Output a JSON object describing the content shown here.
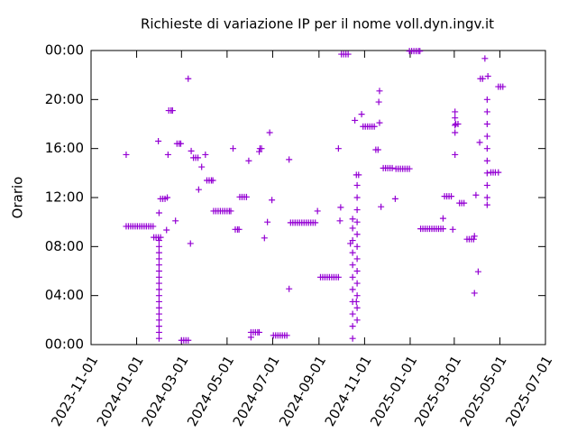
{
  "chart_data": {
    "type": "scatter",
    "title": "Richieste di variazione IP per il nome voll.dyn.ingv.it",
    "y_label": "Orario",
    "color": "#9400d3",
    "xlim": [
      "2023-11-01",
      "2025-07-01"
    ],
    "xticks": [
      "2023-11-01",
      "2024-01-01",
      "2024-03-01",
      "2024-05-01",
      "2024-07-01",
      "2024-09-01",
      "2024-11-01",
      "2025-01-01",
      "2025-03-01",
      "2025-05-01",
      "2025-07-01"
    ],
    "ylim": [
      0,
      24
    ],
    "yticks": [
      {
        "value": 0,
        "label": "00:00"
      },
      {
        "value": 4,
        "label": "04:00"
      },
      {
        "value": 8,
        "label": "08:00"
      },
      {
        "value": 12,
        "label": "12:00"
      },
      {
        "value": 16,
        "label": "16:00"
      },
      {
        "value": 20,
        "label": "20:00"
      },
      {
        "value": 24,
        "label": "00:00"
      }
    ],
    "x": [
      "2023-12-18",
      "2023-12-18",
      "2023-12-21",
      "2023-12-24",
      "2023-12-27",
      "2023-12-30",
      "2024-01-02",
      "2024-01-05",
      "2024-01-08",
      "2024-01-11",
      "2024-01-14",
      "2024-01-17",
      "2024-01-20",
      "2024-01-23",
      "2024-01-24",
      "2024-01-27",
      "2024-01-30",
      "2024-02-02",
      "2024-01-31",
      "2024-01-31",
      "2024-01-31",
      "2024-01-31",
      "2024-01-31",
      "2024-01-31",
      "2024-01-31",
      "2024-01-31",
      "2024-01-31",
      "2024-01-31",
      "2024-01-31",
      "2024-01-31",
      "2024-01-31",
      "2024-01-31",
      "2024-01-31",
      "2024-01-31",
      "2024-01-31",
      "2024-01-30",
      "2024-01-31",
      "2024-02-02",
      "2024-02-05",
      "2024-02-08",
      "2024-02-11",
      "2024-02-10",
      "2024-02-12",
      "2024-02-13",
      "2024-02-16",
      "2024-02-18",
      "2024-02-22",
      "2024-02-24",
      "2024-02-27",
      "2024-02-29",
      "2024-03-01",
      "2024-03-04",
      "2024-03-07",
      "2024-03-10",
      "2024-03-10",
      "2024-03-13",
      "2024-03-14",
      "2024-03-17",
      "2024-03-20",
      "2024-03-23",
      "2024-03-24",
      "2024-03-28",
      "2024-04-02",
      "2024-04-04",
      "2024-04-07",
      "2024-04-10",
      "2024-04-12",
      "2024-04-13",
      "2024-04-16",
      "2024-04-19",
      "2024-04-22",
      "2024-04-25",
      "2024-04-28",
      "2024-05-01",
      "2024-05-04",
      "2024-05-06",
      "2024-05-09",
      "2024-05-12",
      "2024-05-15",
      "2024-05-17",
      "2024-05-18",
      "2024-05-21",
      "2024-05-24",
      "2024-05-27",
      "2024-05-30",
      "2024-06-02",
      "2024-06-02",
      "2024-06-05",
      "2024-06-08",
      "2024-06-11",
      "2024-06-13",
      "2024-06-13",
      "2024-06-14",
      "2024-06-16",
      "2024-06-20",
      "2024-06-24",
      "2024-06-27",
      "2024-06-30",
      "2024-07-02",
      "2024-07-05",
      "2024-07-08",
      "2024-07-11",
      "2024-07-14",
      "2024-07-17",
      "2024-07-20",
      "2024-07-23",
      "2024-07-23",
      "2024-07-25",
      "2024-07-28",
      "2024-07-31",
      "2024-08-03",
      "2024-08-06",
      "2024-08-09",
      "2024-08-12",
      "2024-08-15",
      "2024-08-18",
      "2024-08-21",
      "2024-08-24",
      "2024-08-27",
      "2024-08-30",
      "2024-09-03",
      "2024-09-06",
      "2024-09-09",
      "2024-09-12",
      "2024-09-15",
      "2024-09-18",
      "2024-09-21",
      "2024-09-24",
      "2024-09-27",
      "2024-09-27",
      "2024-09-29",
      "2024-09-30",
      "2024-10-01",
      "2024-10-04",
      "2024-10-07",
      "2024-10-10",
      "2024-10-13",
      "2024-10-16",
      "2024-10-16",
      "2024-10-16",
      "2024-10-16",
      "2024-10-16",
      "2024-10-16",
      "2024-10-16",
      "2024-10-16",
      "2024-10-16",
      "2024-10-16",
      "2024-10-16",
      "2024-10-19",
      "2024-10-21",
      "2024-10-24",
      "2024-10-22",
      "2024-10-22",
      "2024-10-22",
      "2024-10-22",
      "2024-10-22",
      "2024-10-22",
      "2024-10-22",
      "2024-10-22",
      "2024-10-22",
      "2024-10-22",
      "2024-10-22",
      "2024-10-22",
      "2024-10-21",
      "2024-10-28",
      "2024-10-30",
      "2024-11-02",
      "2024-11-05",
      "2024-11-08",
      "2024-11-11",
      "2024-11-14",
      "2024-11-16",
      "2024-11-19",
      "2024-11-20",
      "2024-11-21",
      "2024-11-21",
      "2024-11-23",
      "2024-11-26",
      "2024-11-29",
      "2024-12-02",
      "2024-12-05",
      "2024-12-08",
      "2024-12-12",
      "2024-12-13",
      "2024-12-16",
      "2024-12-19",
      "2024-12-22",
      "2024-12-25",
      "2024-12-28",
      "2024-12-31",
      "2024-12-31",
      "2025-01-03",
      "2025-01-06",
      "2025-01-09",
      "2025-01-12",
      "2025-01-14",
      "2025-01-15",
      "2025-01-18",
      "2025-01-21",
      "2025-01-24",
      "2025-01-27",
      "2025-01-30",
      "2025-02-02",
      "2025-02-05",
      "2025-02-08",
      "2025-02-11",
      "2025-02-14",
      "2025-02-14",
      "2025-02-16",
      "2025-02-19",
      "2025-02-22",
      "2025-02-25",
      "2025-02-27",
      "2025-03-02",
      "2025-03-02",
      "2025-03-02",
      "2025-03-02",
      "2025-03-02",
      "2025-03-03",
      "2025-03-06",
      "2025-03-08",
      "2025-03-11",
      "2025-03-14",
      "2025-03-18",
      "2025-03-21",
      "2025-03-24",
      "2025-03-27",
      "2025-03-28",
      "2025-03-28",
      "2025-03-30",
      "2025-04-02",
      "2025-04-04",
      "2025-04-05",
      "2025-04-08",
      "2025-04-11",
      "2025-04-15",
      "2025-04-14",
      "2025-04-14",
      "2025-04-14",
      "2025-04-14",
      "2025-04-14",
      "2025-04-14",
      "2025-04-14",
      "2025-04-14",
      "2025-04-14",
      "2025-04-14",
      "2025-04-19",
      "2025-04-22",
      "2025-04-25",
      "2025-04-29",
      "2025-04-29",
      "2025-05-02",
      "2025-05-05"
    ],
    "values": [
      15.5,
      9.65,
      9.65,
      9.65,
      9.65,
      9.65,
      9.65,
      9.65,
      9.65,
      9.65,
      9.65,
      9.65,
      9.65,
      9.65,
      8.75,
      8.75,
      8.75,
      8.75,
      0.5,
      1,
      1.5,
      2,
      2.5,
      3,
      3.5,
      4,
      4.5,
      5,
      5.5,
      6,
      6.5,
      7,
      7.5,
      8,
      8.5,
      16.6,
      10.75,
      11.9,
      11.9,
      11.9,
      12.0,
      9.35,
      15.5,
      19.1,
      19.1,
      19.1,
      10.1,
      16.4,
      16.4,
      16.4,
      0.35,
      0.35,
      0.35,
      0.35,
      21.7,
      8.25,
      15.8,
      15.25,
      15.25,
      15.25,
      12.65,
      14.5,
      15.5,
      13.4,
      13.4,
      13.4,
      13.4,
      10.9,
      10.9,
      10.9,
      10.9,
      10.9,
      10.9,
      10.9,
      10.9,
      10.9,
      16,
      9.4,
      9.4,
      9.4,
      12.05,
      12.05,
      12.05,
      12.05,
      15.0,
      0.6,
      1.0,
      1.0,
      1.0,
      1.0,
      1.0,
      15.75,
      16,
      16,
      8.7,
      10,
      17.3,
      11.8,
      0.75,
      0.75,
      0.75,
      0.75,
      0.75,
      0.75,
      0.75,
      15.1,
      4.55,
      9.95,
      9.95,
      9.95,
      9.95,
      9.95,
      9.95,
      9.95,
      9.95,
      9.95,
      9.95,
      9.95,
      9.95,
      10.9,
      5.5,
      5.5,
      5.5,
      5.5,
      5.5,
      5.5,
      5.5,
      5.5,
      5.5,
      16,
      10.1,
      11.2,
      23.7,
      23.7,
      23.7,
      23.7,
      8.25,
      0.5,
      1.5,
      2.5,
      3.5,
      4.5,
      5.5,
      6.5,
      7.5,
      8.5,
      9.5,
      10.25,
      18.3,
      13.85,
      13.85,
      2,
      3,
      4,
      5,
      6,
      7,
      8,
      9,
      10,
      11,
      12,
      13,
      3.5,
      18.8,
      17.8,
      17.8,
      17.8,
      17.8,
      17.8,
      17.8,
      15.9,
      15.9,
      19.8,
      20.7,
      18.1,
      11.25,
      14.4,
      14.4,
      14.4,
      14.4,
      14.4,
      11.9,
      14.35,
      14.35,
      14.35,
      14.35,
      14.35,
      14.35,
      14.35,
      23.95,
      23.95,
      23.95,
      23.95,
      23.95,
      23.95,
      9.45,
      9.45,
      9.45,
      9.45,
      9.45,
      9.45,
      9.45,
      9.45,
      9.45,
      9.45,
      9.45,
      10.3,
      12.1,
      12.1,
      12.1,
      12.1,
      9.4,
      15.5,
      17.3,
      17.9,
      18.5,
      19.0,
      18,
      18,
      11.55,
      11.55,
      11.55,
      8.6,
      8.6,
      8.6,
      8.6,
      8.85,
      4.2,
      12.2,
      5.95,
      16.5,
      21.7,
      21.7,
      23.35,
      21.9,
      11.4,
      12,
      13,
      14,
      15,
      16,
      17,
      18,
      19,
      20,
      14.05,
      14.05,
      14.05,
      14.05,
      21.05,
      21.05,
      21.05
    ]
  }
}
